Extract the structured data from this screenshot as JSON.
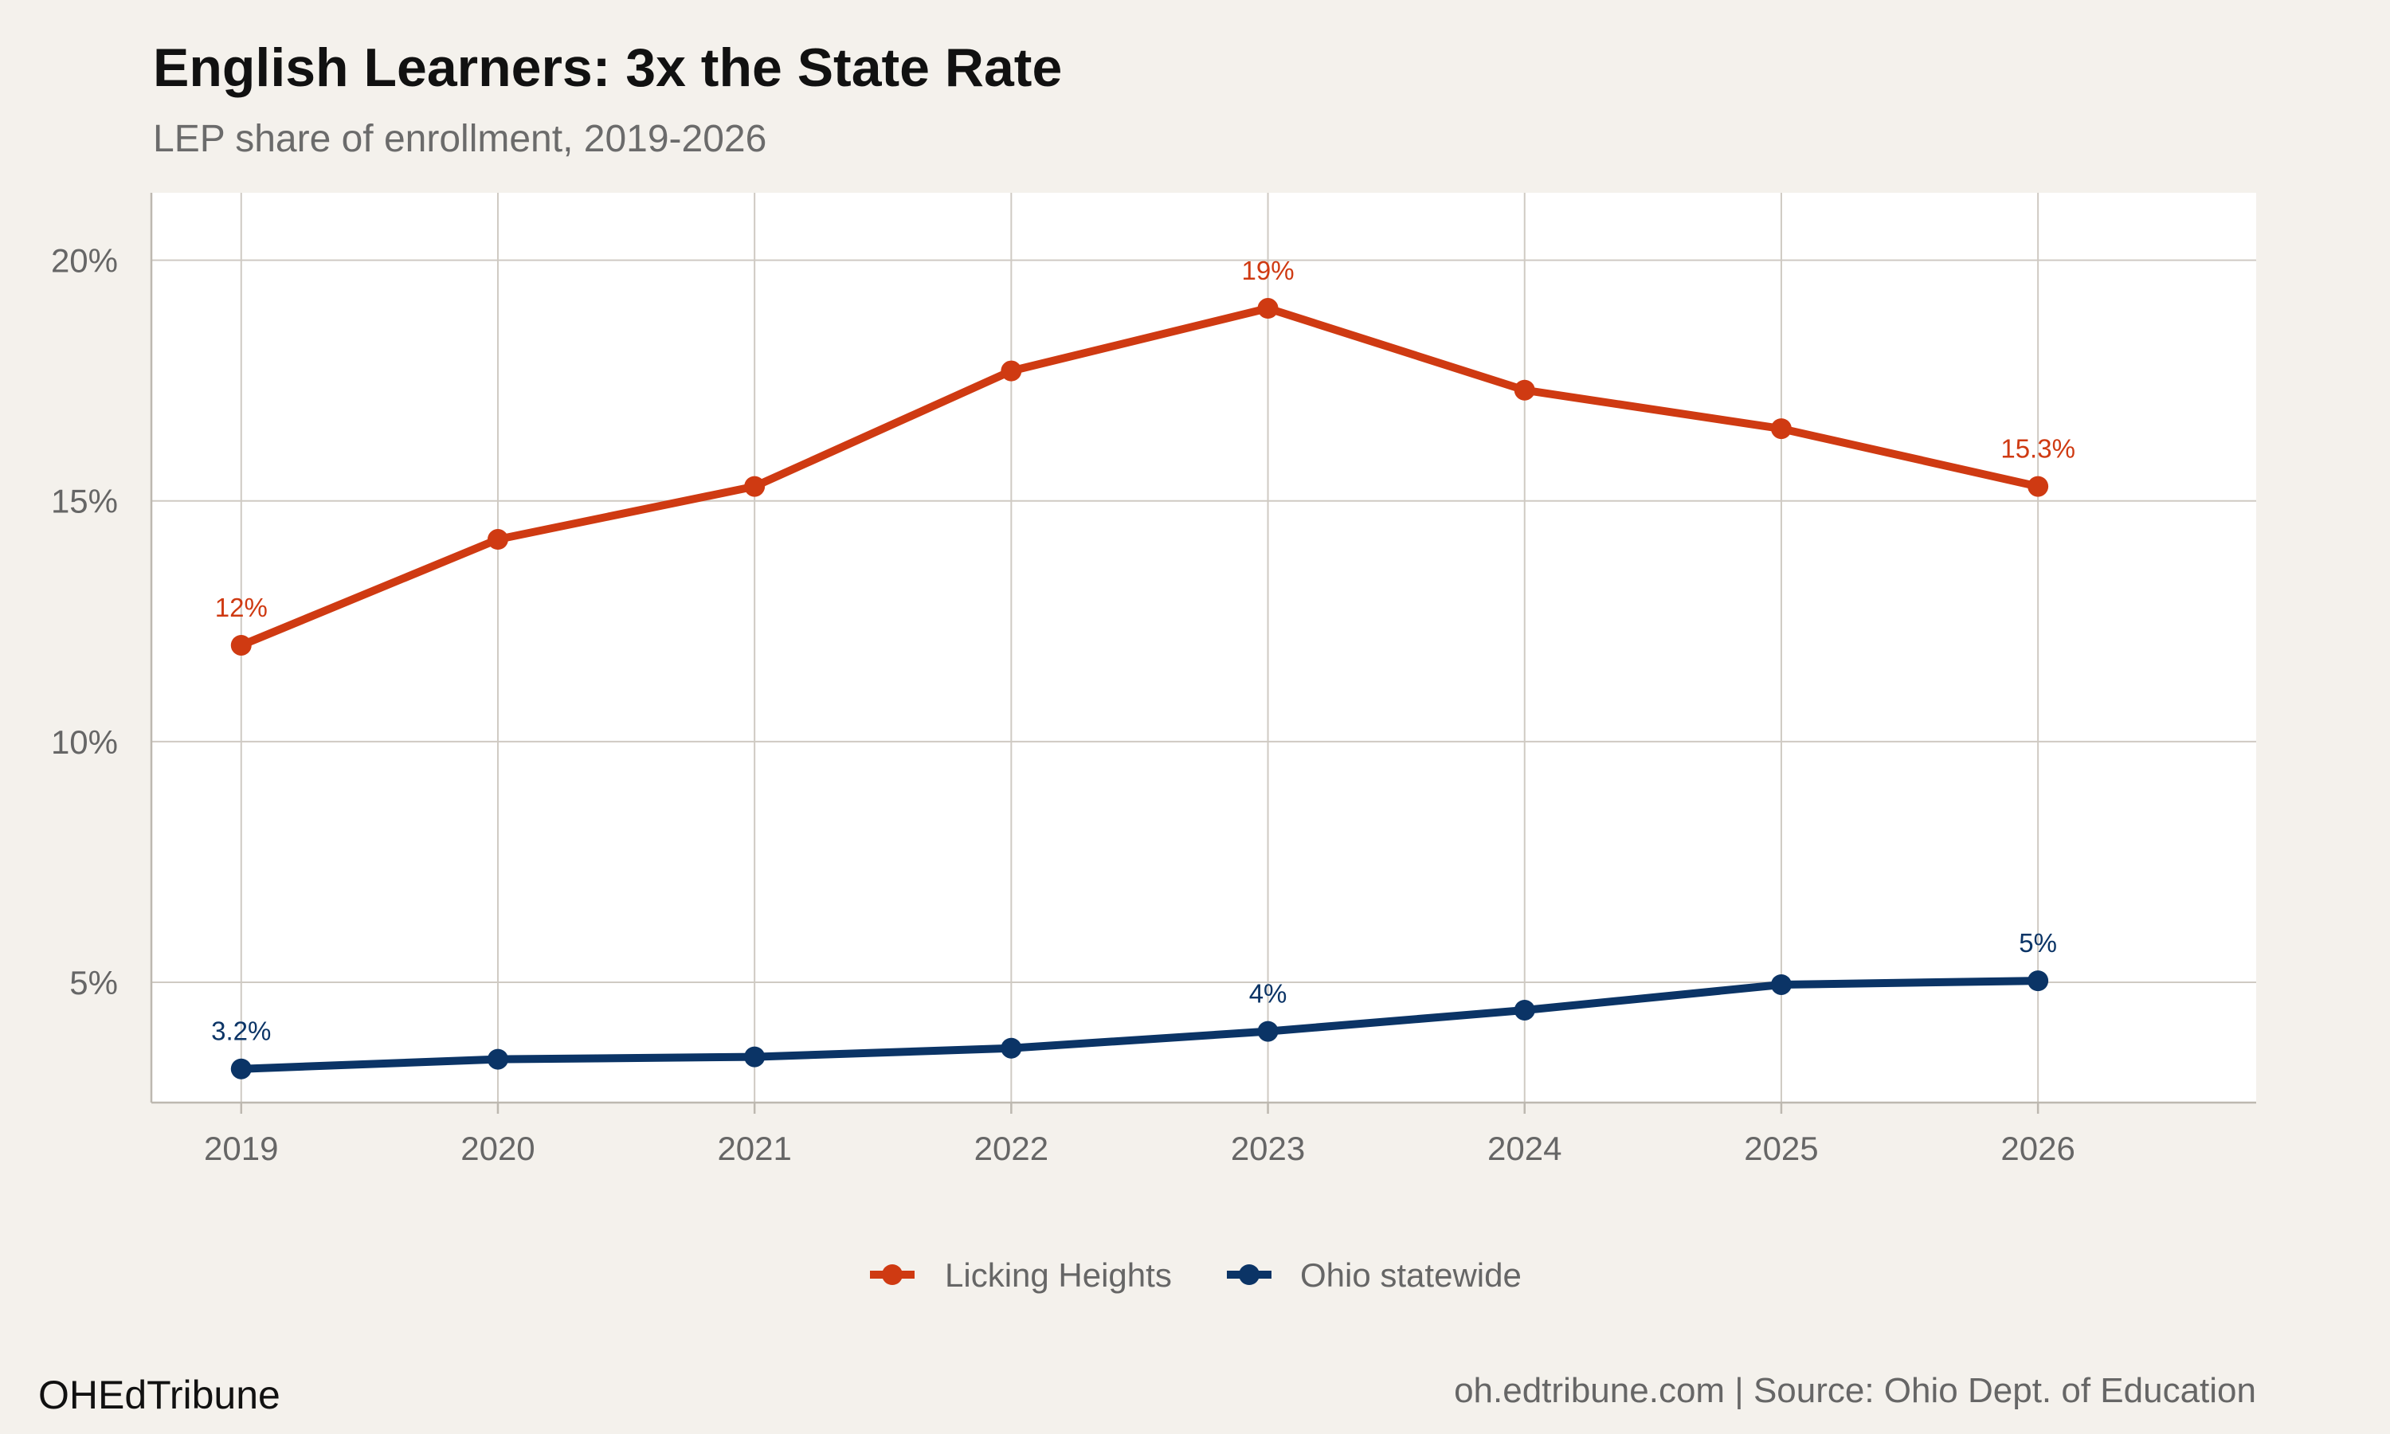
{
  "chart_data": {
    "type": "line",
    "title": "English Learners: 3x the State Rate",
    "subtitle": "LEP share of enrollment, 2019-2026",
    "x": [
      2019,
      2020,
      2021,
      2022,
      2023,
      2024,
      2025,
      2026
    ],
    "x_tick_labels": [
      "2019",
      "2020",
      "2021",
      "2022",
      "2023",
      "2024",
      "2025",
      "2026"
    ],
    "y_ticks": [
      5,
      10,
      15,
      20
    ],
    "y_tick_labels": [
      "5%",
      "10%",
      "15%",
      "20%"
    ],
    "xlim": [
      2018.65,
      2026.85
    ],
    "ylim": [
      2.5,
      21.4
    ],
    "grid": true,
    "legend_position": "bottom",
    "series": [
      {
        "name": "Licking Heights",
        "color": "#cf3a12",
        "values": [
          12.0,
          14.2,
          15.3,
          17.7,
          19.0,
          17.3,
          16.5,
          15.3
        ],
        "labels": [
          {
            "index": 0,
            "text": "12%"
          },
          {
            "index": 4,
            "text": "19%"
          },
          {
            "index": 7,
            "text": "15.3%"
          }
        ]
      },
      {
        "name": "Ohio statewide",
        "color": "#0b3466",
        "values": [
          3.2,
          3.4,
          3.45,
          3.63,
          3.98,
          4.42,
          4.95,
          5.03
        ],
        "labels": [
          {
            "index": 0,
            "text": "3.2%"
          },
          {
            "index": 4,
            "text": "4%"
          },
          {
            "index": 7,
            "text": "5%"
          }
        ]
      }
    ]
  },
  "footer": {
    "brand": "OHEdTribune",
    "source": "oh.edtribune.com | Source: Ohio Dept. of Education"
  }
}
